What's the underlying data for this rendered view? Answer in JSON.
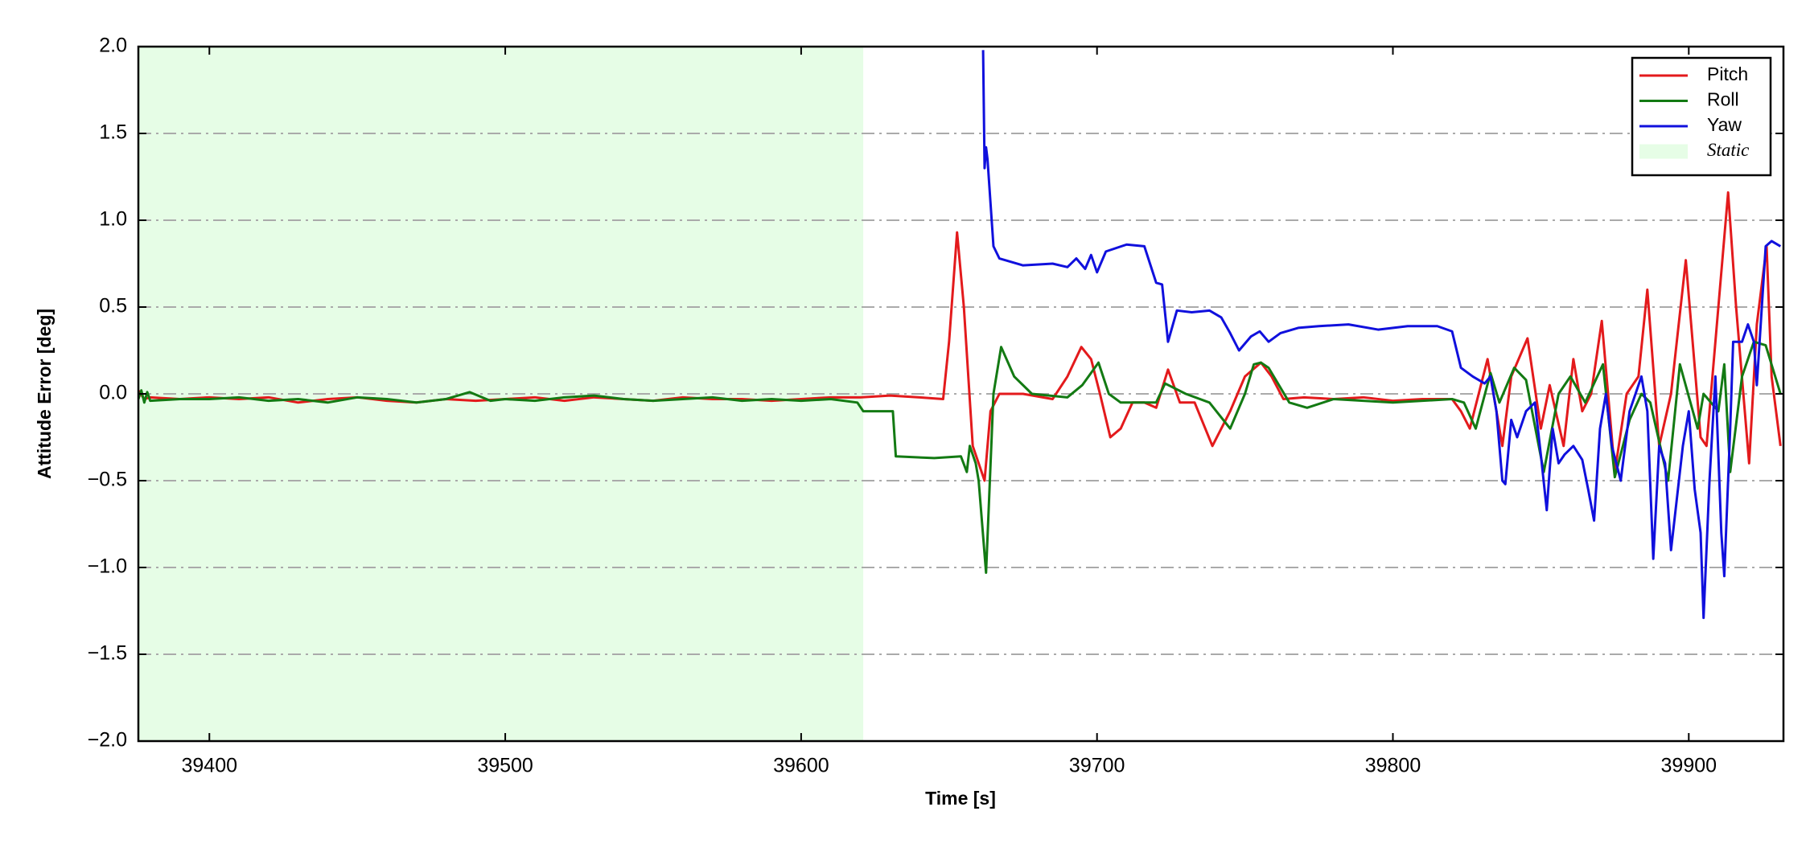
{
  "chart_data": {
    "type": "line",
    "x_label": "Time [s]",
    "y_label": "Attitude Error [deg]",
    "xlim": [
      39376,
      39932
    ],
    "ylim": [
      -2,
      2
    ],
    "xticks": [
      39400,
      39500,
      39600,
      39700,
      39800,
      39900
    ],
    "yticks": [
      {
        "value": -2,
        "label": "−2.0"
      },
      {
        "value": -1.5,
        "label": "−1.5"
      },
      {
        "value": -1,
        "label": "−1.0"
      },
      {
        "value": -0.5,
        "label": "−0.5"
      },
      {
        "value": 0,
        "label": "0.0"
      },
      0.5,
      {
        "value": 1,
        "label": "1.0"
      },
      1.5,
      {
        "value": 2,
        "label": "2.0"
      }
    ],
    "grid": true,
    "legend_position": "upper right",
    "shaded_regions": [
      {
        "name": "Static",
        "x": [
          39376,
          39621
        ],
        "color": "#e6fde6"
      }
    ],
    "series": [
      {
        "name": "Pitch",
        "color": "#e31a1c",
        "x": [
          39376,
          39378,
          39380,
          39390,
          39400,
          39410,
          39420,
          39430,
          39440,
          39450,
          39460,
          39470,
          39480,
          39490,
          39500,
          39510,
          39520,
          39530,
          39540,
          39550,
          39560,
          39570,
          39580,
          39590,
          39600,
          39610,
          39620,
          39630,
          39640,
          39648,
          39650,
          39652.7,
          39655,
          39658,
          39662,
          39664,
          39667,
          39675,
          39685,
          39690,
          39694.7,
          39698,
          39701,
          39704.5,
          39708,
          39712,
          39716,
          39720,
          39724,
          39728,
          39733,
          39739,
          39745,
          39750,
          39755.4,
          39759,
          39763,
          39770,
          39780,
          39790,
          39800,
          39810,
          39820,
          39823,
          39826,
          39829,
          39832,
          39837,
          39840,
          39845.5,
          39850,
          39853,
          39857.7,
          39861,
          39864,
          39867,
          39870.6,
          39875,
          39879,
          39883,
          39886,
          39890,
          39894,
          39899,
          39904,
          39906,
          39910,
          39913.3,
          39916,
          39920.4,
          39923,
          39926.3,
          39928,
          39931
        ],
        "values": [
          0.02,
          -0.03,
          -0.02,
          -0.03,
          -0.02,
          -0.03,
          -0.02,
          -0.05,
          -0.03,
          -0.02,
          -0.04,
          -0.05,
          -0.03,
          -0.04,
          -0.03,
          -0.02,
          -0.04,
          -0.02,
          -0.03,
          -0.04,
          -0.02,
          -0.03,
          -0.03,
          -0.04,
          -0.03,
          -0.02,
          -0.02,
          -0.01,
          -0.02,
          -0.03,
          0.3,
          0.93,
          0.5,
          -0.3,
          -0.5,
          -0.1,
          0.0,
          0.0,
          -0.03,
          0.1,
          0.27,
          0.2,
          0.0,
          -0.25,
          -0.2,
          -0.05,
          -0.05,
          -0.08,
          0.14,
          -0.05,
          -0.05,
          -0.3,
          -0.1,
          0.1,
          0.18,
          0.1,
          -0.03,
          -0.02,
          -0.03,
          -0.02,
          -0.04,
          -0.03,
          -0.03,
          -0.1,
          -0.2,
          0.0,
          0.2,
          -0.3,
          0.1,
          0.32,
          -0.2,
          0.05,
          -0.3,
          0.2,
          -0.1,
          0.0,
          0.42,
          -0.45,
          0.0,
          0.1,
          0.6,
          -0.3,
          0.0,
          0.77,
          -0.25,
          -0.3,
          0.5,
          1.16,
          0.5,
          -0.4,
          0.4,
          0.85,
          0.1,
          -0.3
        ]
      },
      {
        "name": "Roll",
        "color": "#137a13",
        "x": [
          39376,
          39377,
          39378,
          39379,
          39380,
          39390,
          39400,
          39410,
          39420,
          39430,
          39440,
          39450,
          39460,
          39470,
          39480,
          39488,
          39495,
          39500,
          39510,
          39520,
          39530,
          39540,
          39550,
          39560,
          39570,
          39580,
          39590,
          39600,
          39610,
          39619,
          39621,
          39631,
          39632,
          39645,
          39654,
          39656,
          39657,
          39659,
          39660,
          39662.5,
          39665,
          39667.6,
          39672,
          39678,
          39690,
          39695,
          39700.5,
          39704,
          39708,
          39720,
          39723,
          39730,
          39738,
          39745,
          39750,
          39753,
          39755.4,
          39758,
          39765,
          39771,
          39780,
          39800,
          39820,
          39824,
          39828,
          39833,
          39836,
          39841,
          39845,
          39851,
          39856,
          39860,
          39865,
          39871,
          39875,
          39880,
          39884,
          39887,
          39893,
          39897,
          39903,
          39905,
          39910,
          39912,
          39914,
          39918,
          39922,
          39926,
          39931
        ],
        "values": [
          -0.03,
          0.02,
          -0.05,
          0.01,
          -0.04,
          -0.03,
          -0.03,
          -0.02,
          -0.04,
          -0.03,
          -0.05,
          -0.02,
          -0.03,
          -0.05,
          -0.03,
          0.01,
          -0.04,
          -0.03,
          -0.04,
          -0.02,
          -0.01,
          -0.03,
          -0.04,
          -0.03,
          -0.02,
          -0.04,
          -0.03,
          -0.04,
          -0.03,
          -0.05,
          -0.1,
          -0.1,
          -0.36,
          -0.37,
          -0.36,
          -0.45,
          -0.3,
          -0.4,
          -0.5,
          -1.03,
          0.0,
          0.27,
          0.1,
          0.0,
          -0.02,
          0.05,
          0.18,
          0.0,
          -0.05,
          -0.05,
          0.06,
          0.0,
          -0.05,
          -0.2,
          0.0,
          0.17,
          0.18,
          0.15,
          -0.05,
          -0.08,
          -0.03,
          -0.05,
          -0.03,
          -0.05,
          -0.2,
          0.12,
          -0.05,
          0.15,
          0.08,
          -0.45,
          0.0,
          0.1,
          -0.05,
          0.17,
          -0.48,
          -0.15,
          0.0,
          -0.05,
          -0.5,
          0.17,
          -0.2,
          0.0,
          -0.1,
          0.17,
          -0.45,
          0.1,
          0.3,
          0.28,
          0.0
        ]
      },
      {
        "name": "Yaw",
        "color": "#1010dd",
        "x": [
          39661.5,
          39662,
          39662.5,
          39663,
          39665,
          39667,
          39675,
          39685,
          39690,
          39693,
          39696,
          39698,
          39700,
          39703,
          39710,
          39716,
          39720,
          39722,
          39724,
          39727,
          39732,
          39738,
          39742,
          39745,
          39748,
          39752,
          39755,
          39758,
          39762,
          39768,
          39775,
          39785,
          39795,
          39805,
          39815,
          39820,
          39823,
          39827,
          39831,
          39833,
          39835,
          39837,
          39838,
          39840,
          39842,
          39845,
          39848,
          39850,
          39852,
          39854,
          39856,
          39858,
          39861,
          39864,
          39866,
          39868,
          39870,
          39872,
          39874,
          39877,
          39880,
          39884,
          39886,
          39888,
          39890,
          39892,
          39894,
          39896,
          39898,
          39900,
          39902,
          39904,
          39905,
          39907,
          39909,
          39911,
          39912,
          39914,
          39915,
          39918,
          39920,
          39922,
          39923,
          39926,
          39928,
          39931
        ],
        "values": [
          1.98,
          1.3,
          1.42,
          1.35,
          0.85,
          0.78,
          0.74,
          0.75,
          0.73,
          0.78,
          0.72,
          0.8,
          0.7,
          0.82,
          0.86,
          0.85,
          0.64,
          0.63,
          0.3,
          0.48,
          0.47,
          0.48,
          0.44,
          0.35,
          0.25,
          0.33,
          0.36,
          0.3,
          0.35,
          0.38,
          0.39,
          0.4,
          0.37,
          0.39,
          0.39,
          0.36,
          0.15,
          0.1,
          0.06,
          0.1,
          -0.1,
          -0.5,
          -0.52,
          -0.15,
          -0.25,
          -0.1,
          -0.05,
          -0.35,
          -0.67,
          -0.2,
          -0.4,
          -0.35,
          -0.3,
          -0.38,
          -0.55,
          -0.73,
          -0.2,
          0.0,
          -0.3,
          -0.5,
          -0.1,
          0.1,
          -0.1,
          -0.95,
          -0.3,
          -0.4,
          -0.9,
          -0.6,
          -0.3,
          -0.1,
          -0.55,
          -0.8,
          -1.29,
          -0.5,
          0.1,
          -0.8,
          -1.05,
          -0.2,
          0.3,
          0.3,
          0.4,
          0.3,
          0.05,
          0.85,
          0.88,
          0.85
        ]
      }
    ]
  }
}
